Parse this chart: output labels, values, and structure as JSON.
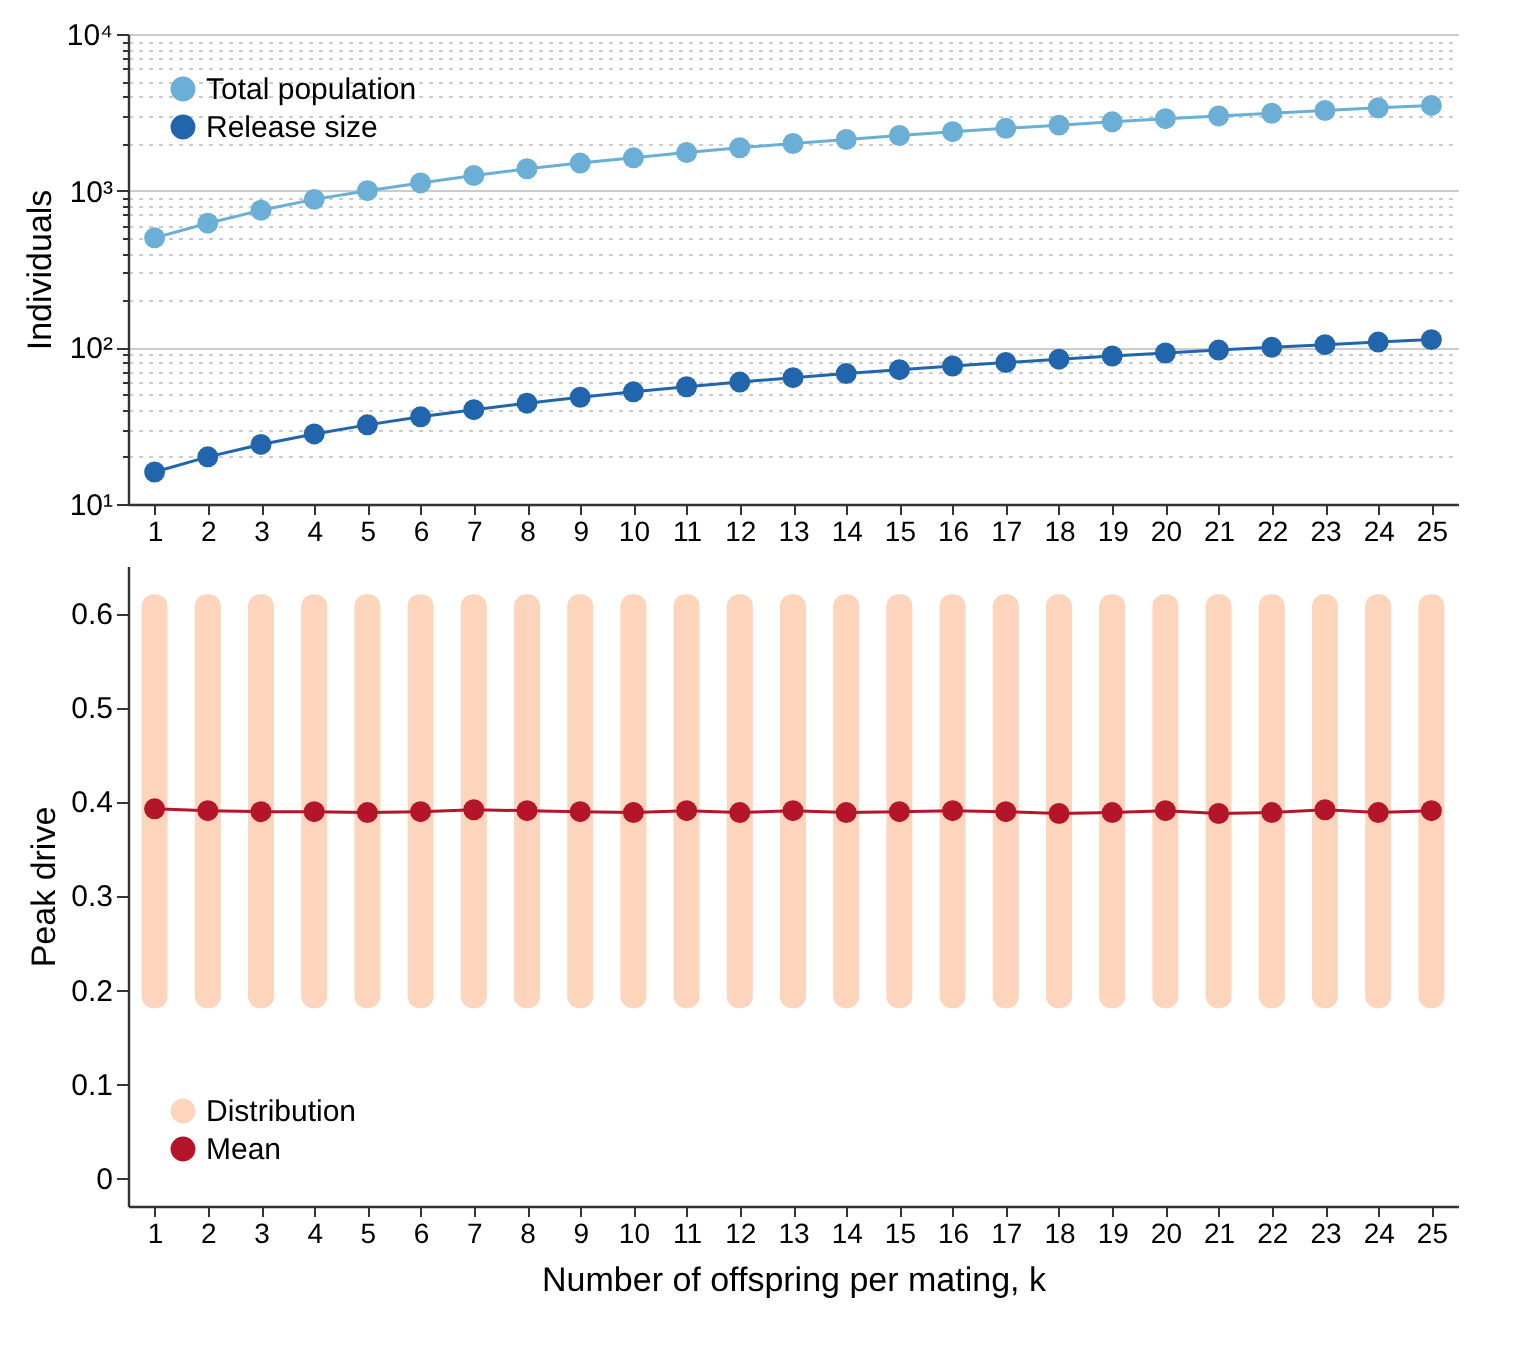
{
  "chart_data": [
    {
      "type": "line",
      "ylabel": "Individuals",
      "x": [
        1,
        2,
        3,
        4,
        5,
        6,
        7,
        8,
        9,
        10,
        11,
        12,
        13,
        14,
        15,
        16,
        17,
        18,
        19,
        20,
        21,
        22,
        23,
        24,
        25
      ],
      "xlim": [
        0.5,
        25.5
      ],
      "xticks": [
        1,
        2,
        3,
        4,
        5,
        6,
        7,
        8,
        9,
        10,
        11,
        12,
        13,
        14,
        15,
        16,
        17,
        18,
        19,
        20,
        21,
        22,
        23,
        24,
        25
      ],
      "log": true,
      "grid": "y",
      "legend": "top left",
      "marker": "circle",
      "ylim": [
        10,
        10000
      ],
      "yticks": [
        {
          "value": 10,
          "label": "10¹"
        },
        {
          "value": 20,
          "label": null
        },
        {
          "value": 30,
          "label": null
        },
        {
          "value": 40,
          "label": null
        },
        {
          "value": 50,
          "label": null
        },
        {
          "value": 60,
          "label": null
        },
        {
          "value": 70,
          "label": null
        },
        {
          "value": 80,
          "label": null
        },
        {
          "value": 90,
          "label": null
        },
        {
          "value": 100,
          "label": "10²"
        },
        {
          "value": 200,
          "label": null
        },
        {
          "value": 300,
          "label": null
        },
        {
          "value": 400,
          "label": null
        },
        {
          "value": 500,
          "label": null
        },
        {
          "value": 600,
          "label": null
        },
        {
          "value": 700,
          "label": null
        },
        {
          "value": 800,
          "label": null
        },
        {
          "value": 900,
          "label": null
        },
        {
          "value": 1000,
          "label": "10³"
        },
        {
          "value": 2000,
          "label": null
        },
        {
          "value": 3000,
          "label": null
        },
        {
          "value": 4000,
          "label": null
        },
        {
          "value": 5000,
          "label": null
        },
        {
          "value": 6000,
          "label": null
        },
        {
          "value": 7000,
          "label": null
        },
        {
          "value": 8000,
          "label": null
        },
        {
          "value": 9000,
          "label": null
        },
        {
          "value": 10000,
          "label": "10⁴"
        }
      ],
      "series": [
        {
          "name": "Total population",
          "color": "#6baed6",
          "values": [
            500,
            620,
            750,
            880,
            1000,
            1120,
            1250,
            1380,
            1500,
            1620,
            1750,
            1880,
            2000,
            2120,
            2250,
            2380,
            2500,
            2620,
            2750,
            2880,
            3000,
            3120,
            3250,
            3380,
            3500
          ]
        },
        {
          "name": "Release size",
          "color": "#2166ac",
          "values": [
            16,
            20,
            24,
            28,
            32,
            36,
            40,
            44,
            48,
            52,
            56,
            60,
            64,
            68,
            72,
            76,
            80,
            84,
            88,
            92,
            96,
            100,
            104,
            108,
            112
          ]
        }
      ]
    },
    {
      "type": "line",
      "xlabel": "Number of offspring per mating, k",
      "ylabel": "Peak drive",
      "x": [
        1,
        2,
        3,
        4,
        5,
        6,
        7,
        8,
        9,
        10,
        11,
        12,
        13,
        14,
        15,
        16,
        17,
        18,
        19,
        20,
        21,
        22,
        23,
        24,
        25
      ],
      "xlim": [
        0.5,
        25.5
      ],
      "xticks": [
        1,
        2,
        3,
        4,
        5,
        6,
        7,
        8,
        9,
        10,
        11,
        12,
        13,
        14,
        15,
        16,
        17,
        18,
        19,
        20,
        21,
        22,
        23,
        24,
        25
      ],
      "legend": "bottom left",
      "marker": "circle",
      "ylim": [
        -0.03,
        0.65
      ],
      "yticks": [
        0,
        0.1,
        0.2,
        0.3,
        0.4,
        0.5,
        0.6
      ],
      "series": [
        {
          "name": "Distribution",
          "type": "bar",
          "color": "#fdd5bd",
          "base": [
            0.18,
            0.18,
            0.18,
            0.18,
            0.18,
            0.18,
            0.18,
            0.18,
            0.18,
            0.18,
            0.18,
            0.18,
            0.18,
            0.18,
            0.18,
            0.18,
            0.18,
            0.18,
            0.18,
            0.18,
            0.18,
            0.18,
            0.18,
            0.18,
            0.18
          ],
          "values": [
            0.44,
            0.44,
            0.44,
            0.44,
            0.44,
            0.44,
            0.44,
            0.44,
            0.44,
            0.44,
            0.44,
            0.44,
            0.44,
            0.44,
            0.44,
            0.44,
            0.44,
            0.44,
            0.44,
            0.44,
            0.44,
            0.44,
            0.44,
            0.44,
            0.44
          ]
        },
        {
          "name": "Mean",
          "color": "#b5152b",
          "values": [
            0.392,
            0.39,
            0.389,
            0.389,
            0.388,
            0.389,
            0.391,
            0.39,
            0.389,
            0.388,
            0.39,
            0.388,
            0.39,
            0.388,
            0.389,
            0.39,
            0.389,
            0.387,
            0.388,
            0.39,
            0.387,
            0.388,
            0.391,
            0.388,
            0.39
          ]
        }
      ]
    }
  ]
}
